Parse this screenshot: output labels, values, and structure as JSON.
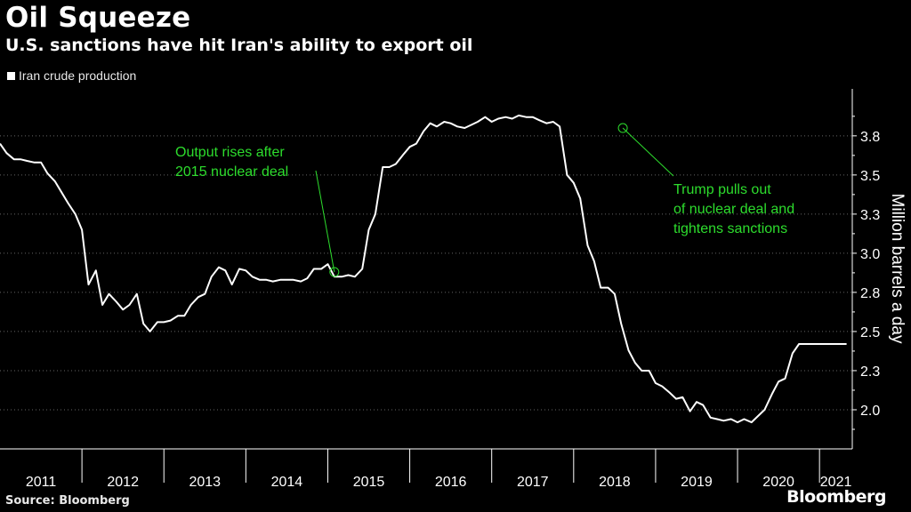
{
  "header": {
    "title": "Oil Squeeze",
    "subtitle": "U.S. sanctions have hit Iran's ability to export oil"
  },
  "legend": {
    "label": "Iran crude production"
  },
  "footer": {
    "source": "Source: Bloomberg",
    "brand": "Bloomberg"
  },
  "colors": {
    "background": "#000000",
    "line": "#ffffff",
    "grid": "#666666",
    "annotation": "#2ddd2d"
  },
  "chart_data": {
    "type": "line",
    "title": "Oil Squeeze",
    "subtitle": "U.S. sanctions have hit Iran's ability to export oil",
    "ylabel": "Million barrels a day",
    "xlabel": "",
    "grid": "horizontal dotted",
    "legend_position": "top-left",
    "x_range": [
      2011.0,
      2021.4
    ],
    "y_range": [
      1.75,
      4.05
    ],
    "y_ticks": [
      2.0,
      2.25,
      2.5,
      2.75,
      3.0,
      3.25,
      3.5,
      3.75
    ],
    "y_tick_labels": [
      "2.0",
      "2.3",
      "2.5",
      "2.8",
      "3.0",
      "3.3",
      "3.5",
      "3.8"
    ],
    "x_tick_labels": [
      "2011",
      "2012",
      "2013",
      "2014",
      "2015",
      "2016",
      "2017",
      "2018",
      "2019",
      "2020",
      "2021"
    ],
    "series": [
      {
        "name": "Iran crude production",
        "x": [
          2011.0,
          2011.08,
          2011.17,
          2011.25,
          2011.33,
          2011.42,
          2011.5,
          2011.58,
          2011.67,
          2011.75,
          2011.83,
          2011.92,
          2012.0,
          2012.08,
          2012.17,
          2012.25,
          2012.33,
          2012.42,
          2012.5,
          2012.58,
          2012.67,
          2012.75,
          2012.83,
          2012.92,
          2013.0,
          2013.08,
          2013.17,
          2013.25,
          2013.33,
          2013.42,
          2013.5,
          2013.58,
          2013.67,
          2013.75,
          2013.83,
          2013.92,
          2014.0,
          2014.08,
          2014.17,
          2014.25,
          2014.33,
          2014.42,
          2014.5,
          2014.58,
          2014.67,
          2014.75,
          2014.83,
          2014.92,
          2015.0,
          2015.08,
          2015.17,
          2015.25,
          2015.33,
          2015.42,
          2015.5,
          2015.58,
          2015.67,
          2015.75,
          2015.83,
          2015.92,
          2016.0,
          2016.08,
          2016.17,
          2016.25,
          2016.33,
          2016.42,
          2016.5,
          2016.58,
          2016.67,
          2016.75,
          2016.83,
          2016.92,
          2017.0,
          2017.08,
          2017.17,
          2017.25,
          2017.33,
          2017.42,
          2017.5,
          2017.58,
          2017.67,
          2017.75,
          2017.83,
          2017.92,
          2018.0,
          2018.08,
          2018.17,
          2018.25,
          2018.33,
          2018.42,
          2018.5,
          2018.58,
          2018.67,
          2018.75,
          2018.83,
          2018.92,
          2019.0,
          2019.08,
          2019.17,
          2019.25,
          2019.33,
          2019.42,
          2019.5,
          2019.58,
          2019.67,
          2019.75,
          2019.83,
          2019.92,
          2020.0,
          2020.08,
          2020.17,
          2020.25,
          2020.33,
          2020.42,
          2020.5,
          2020.58,
          2020.67,
          2020.75,
          2020.83,
          2020.92,
          2021.0,
          2021.08,
          2021.17,
          2021.25,
          2021.33
        ],
        "values": [
          3.7,
          3.64,
          3.6,
          3.6,
          3.59,
          3.58,
          3.58,
          3.51,
          3.46,
          3.39,
          3.32,
          3.25,
          3.15,
          2.8,
          2.89,
          2.67,
          2.74,
          2.69,
          2.64,
          2.67,
          2.74,
          2.55,
          2.5,
          2.56,
          2.56,
          2.57,
          2.6,
          2.6,
          2.67,
          2.72,
          2.74,
          2.85,
          2.91,
          2.89,
          2.8,
          2.9,
          2.89,
          2.85,
          2.83,
          2.83,
          2.82,
          2.83,
          2.83,
          2.83,
          2.82,
          2.84,
          2.9,
          2.9,
          2.93,
          2.85,
          2.85,
          2.86,
          2.85,
          2.9,
          3.15,
          3.25,
          3.55,
          3.55,
          3.57,
          3.63,
          3.68,
          3.7,
          3.78,
          3.83,
          3.81,
          3.84,
          3.83,
          3.81,
          3.8,
          3.82,
          3.84,
          3.87,
          3.84,
          3.86,
          3.87,
          3.86,
          3.88,
          3.87,
          3.87,
          3.85,
          3.83,
          3.84,
          3.81,
          3.5,
          3.45,
          3.35,
          3.05,
          2.95,
          2.78,
          2.78,
          2.74,
          2.55,
          2.38,
          2.3,
          2.25,
          2.25,
          2.17,
          2.15,
          2.11,
          2.07,
          2.08,
          1.99,
          2.05,
          2.03,
          1.95,
          1.94,
          1.93,
          1.94,
          1.92,
          1.94,
          1.92,
          1.96,
          2.0,
          2.1,
          2.18,
          2.2,
          2.36,
          2.42,
          2.42,
          2.42,
          2.42,
          2.42,
          2.42,
          2.42,
          2.42
        ],
        "color": "#ffffff"
      }
    ],
    "annotations": [
      {
        "lines": [
          "Output rises after",
          "2015 nuclear deal"
        ],
        "target_x": 2015.08,
        "target_y": 2.88
      },
      {
        "lines": [
          "Trump pulls out",
          "of nuclear deal and",
          "tightens sanctions"
        ],
        "target_x": 2018.6,
        "target_y": 3.8
      }
    ]
  }
}
